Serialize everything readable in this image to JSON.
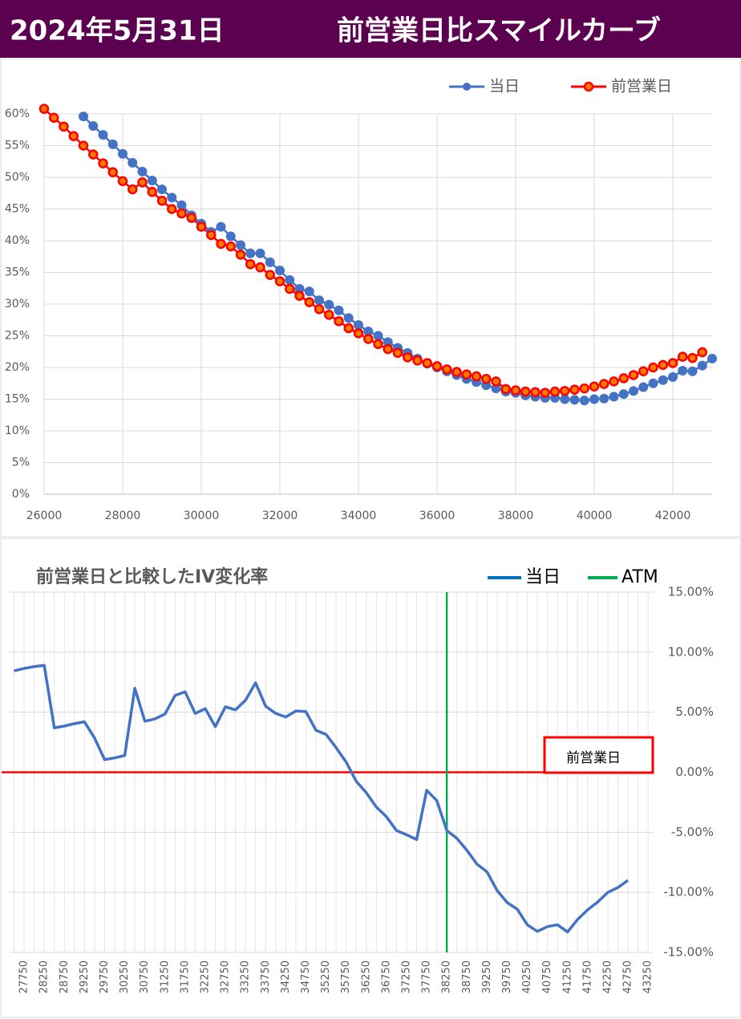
{
  "header": {
    "date": "2024年5月31日",
    "title": "前営業日比スマイルカーブ"
  },
  "chart_data": [
    {
      "type": "line",
      "x": [
        26000,
        26250,
        26500,
        26750,
        27000,
        27250,
        27500,
        27750,
        28000,
        28250,
        28500,
        28750,
        29000,
        29250,
        29500,
        29750,
        30000,
        30250,
        30500,
        30750,
        31000,
        31250,
        31500,
        31750,
        32000,
        32250,
        32500,
        32750,
        33000,
        33250,
        33500,
        33750,
        34000,
        34250,
        34500,
        34750,
        35000,
        35250,
        35500,
        35750,
        36000,
        36250,
        36500,
        36750,
        37000,
        37250,
        37500,
        37750,
        38000,
        38250,
        38500,
        38750,
        39000,
        39250,
        39500,
        39750,
        40000,
        40250,
        40500,
        40750,
        41000,
        41250,
        41500,
        41750,
        42000,
        42250,
        42500,
        42750,
        43000
      ],
      "series": [
        {
          "name": "当日",
          "color": "#4472c4",
          "marker": "circle",
          "values": [
            null,
            null,
            null,
            null,
            59.6,
            58.1,
            56.7,
            55.2,
            53.7,
            52.3,
            50.9,
            49.5,
            48.1,
            46.8,
            45.6,
            44.0,
            42.7,
            41.4,
            42.2,
            40.7,
            39.3,
            38.0,
            38.0,
            36.6,
            35.3,
            33.8,
            32.4,
            32.0,
            30.6,
            29.9,
            29.0,
            27.8,
            26.7,
            25.7,
            25.0,
            24.0,
            23.1,
            22.3,
            21.4,
            20.6,
            20.0,
            19.4,
            18.8,
            18.2,
            17.7,
            17.2,
            16.7,
            16.2,
            16.0,
            15.6,
            15.4,
            15.2,
            15.2,
            15.0,
            14.9,
            14.8,
            15.0,
            15.1,
            15.4,
            15.8,
            16.3,
            16.9,
            17.5,
            18.0,
            18.5,
            19.5,
            19.4,
            20.3,
            21.4
          ]
        },
        {
          "name": "前営業日",
          "color": "#ff0000",
          "marker": "circle",
          "values": [
            60.8,
            59.4,
            58.0,
            56.5,
            55.0,
            53.6,
            52.2,
            50.8,
            49.4,
            48.1,
            49.2,
            47.7,
            46.3,
            45.0,
            44.3,
            43.6,
            42.2,
            40.9,
            39.5,
            39.1,
            37.8,
            36.3,
            35.8,
            34.6,
            33.6,
            32.4,
            31.3,
            30.3,
            29.2,
            28.3,
            27.3,
            26.2,
            25.4,
            24.5,
            23.7,
            22.9,
            22.3,
            21.6,
            21.1,
            20.7,
            20.2,
            19.7,
            19.3,
            18.9,
            18.6,
            18.2,
            17.8,
            16.6,
            16.4,
            16.2,
            16.1,
            16.0,
            16.2,
            16.3,
            16.5,
            16.7,
            17.0,
            17.4,
            17.8,
            18.3,
            18.8,
            19.4,
            20.0,
            20.4,
            20.7,
            21.7,
            21.5,
            22.4,
            null
          ]
        }
      ],
      "xlim": [
        26000,
        43000
      ],
      "xticks": [
        26000,
        28000,
        30000,
        32000,
        34000,
        36000,
        38000,
        40000,
        42000
      ],
      "ylim": [
        0,
        60
      ],
      "yticks": [
        {
          "value": 0,
          "label": "0%"
        },
        {
          "value": 5,
          "label": "5%"
        },
        {
          "value": 10,
          "label": "10%"
        },
        {
          "value": 15,
          "label": "15%"
        },
        {
          "value": 20,
          "label": "20%"
        },
        {
          "value": 25,
          "label": "25%"
        },
        {
          "value": 30,
          "label": "30%"
        },
        {
          "value": 35,
          "label": "35%"
        },
        {
          "value": 40,
          "label": "40%"
        },
        {
          "value": 45,
          "label": "45%"
        },
        {
          "value": 50,
          "label": "50%"
        },
        {
          "value": 55,
          "label": "55%"
        },
        {
          "value": 60,
          "label": "60%"
        }
      ],
      "grid": true,
      "legend": "top"
    },
    {
      "type": "line",
      "title": "前営業日と比較したIV変化率",
      "categories": [
        null,
        "27750",
        null,
        "28250",
        null,
        "28750",
        null,
        "29250",
        null,
        "29750",
        null,
        "30250",
        null,
        "30750",
        null,
        "31250",
        null,
        "31750",
        null,
        "32250",
        null,
        "32750",
        null,
        "33250",
        null,
        "33750",
        null,
        "34250",
        null,
        "34750",
        null,
        "35250",
        null,
        "35750",
        null,
        "36250",
        null,
        "36750",
        null,
        "37250",
        null,
        "37750",
        null,
        "38250",
        null,
        "38750",
        null,
        "39250",
        null,
        "39750",
        null,
        "40250",
        null,
        "40750",
        null,
        "41250",
        null,
        "41750",
        null,
        "42250",
        null,
        "42750",
        null,
        "43250"
      ],
      "series": [
        {
          "name": "当日",
          "color": "#4472c4",
          "values": [
            8.45,
            8.65,
            8.8,
            8.9,
            3.7,
            3.85,
            4.05,
            4.2,
            2.85,
            1.05,
            1.2,
            1.4,
            7.0,
            4.25,
            4.45,
            4.85,
            6.4,
            6.7,
            4.9,
            5.3,
            3.8,
            5.45,
            5.2,
            6.0,
            7.45,
            5.5,
            4.9,
            4.6,
            5.1,
            5.05,
            3.5,
            3.15,
            2.05,
            0.85,
            -0.75,
            -1.7,
            -2.9,
            -3.7,
            -4.85,
            -5.2,
            -5.6,
            -1.5,
            -2.35,
            -4.85,
            -5.5,
            -6.5,
            -7.65,
            -8.3,
            -9.85,
            -10.85,
            -11.4,
            -12.7,
            -13.25,
            -12.85,
            -12.7,
            -13.3,
            -12.25,
            -11.45,
            -10.8,
            -10.0,
            -9.6,
            -9.0,
            null,
            null
          ]
        }
      ],
      "atm": {
        "name": "ATM",
        "color": "#00b050",
        "category": "38250"
      },
      "reference": {
        "name": "前営業日",
        "color": "#ff0000",
        "value": 0
      },
      "ylim": [
        -15,
        15
      ],
      "yticks": [
        {
          "value": 15,
          "label": "15.00%"
        },
        {
          "value": 10,
          "label": "10.00%"
        },
        {
          "value": 5,
          "label": "5.00%"
        },
        {
          "value": 0,
          "label": "0.00%"
        },
        {
          "value": -5,
          "label": "-5.00%"
        },
        {
          "value": -10,
          "label": "-10.00%"
        },
        {
          "value": -15,
          "label": "-15.00%"
        }
      ],
      "grid": true,
      "legend": "top-right"
    }
  ]
}
